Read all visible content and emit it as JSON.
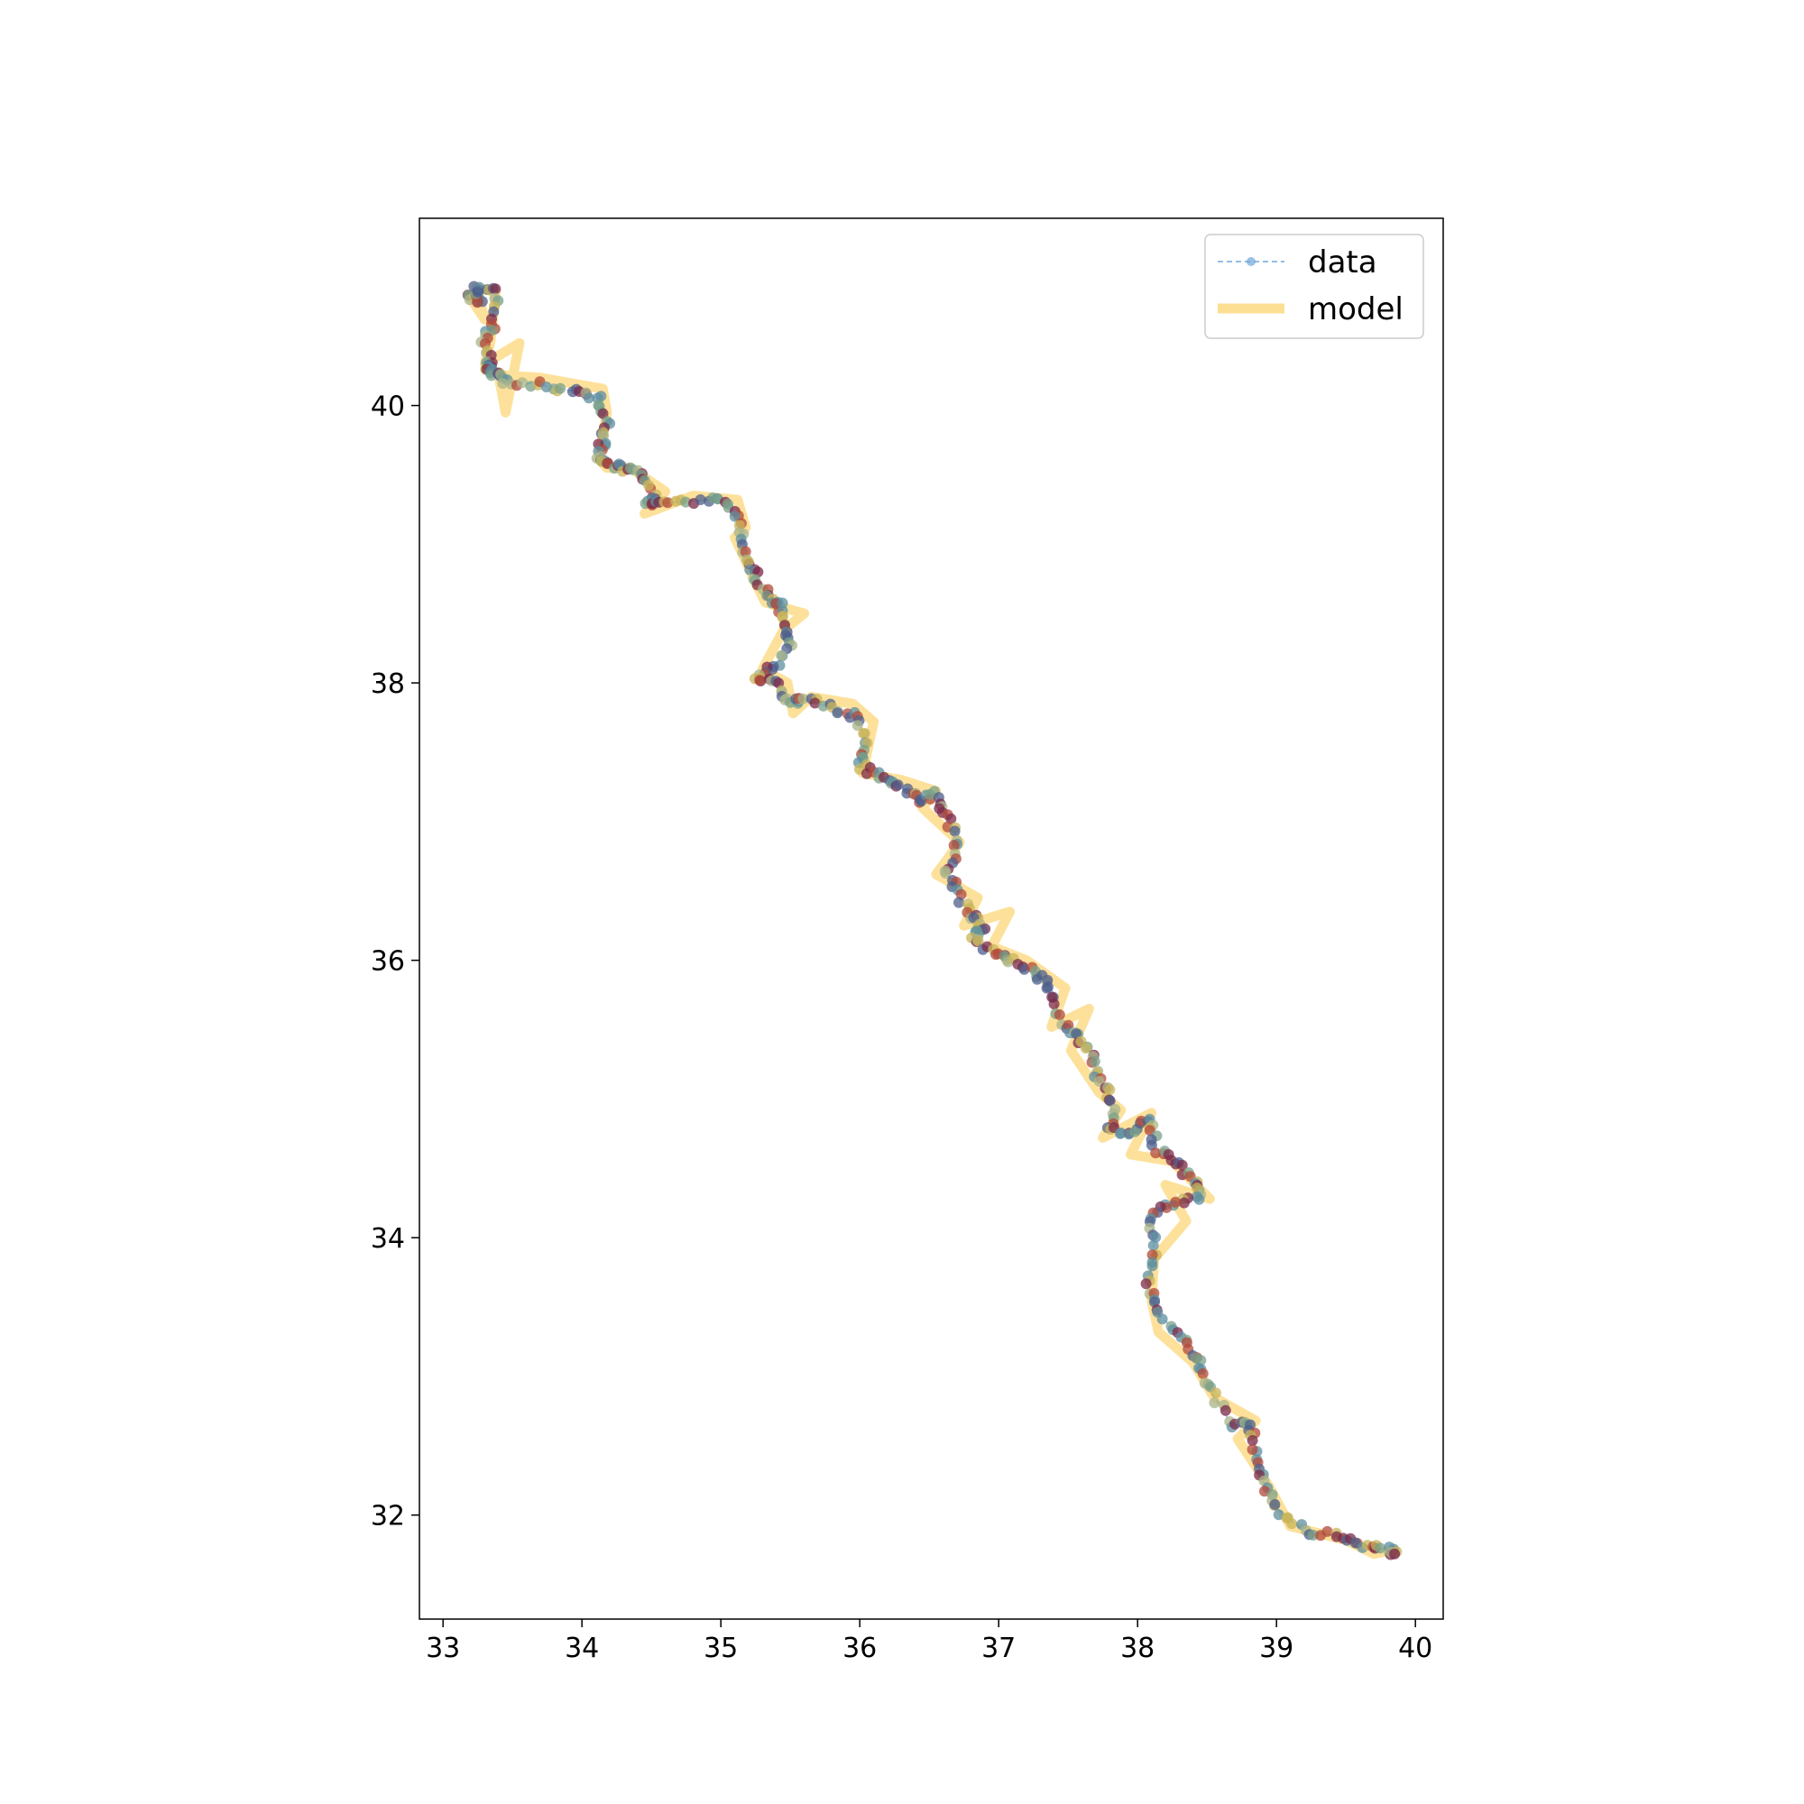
{
  "chart_data": {
    "type": "line",
    "title": "",
    "xlabel": "",
    "ylabel": "",
    "xlim": [
      32.83,
      40.2
    ],
    "ylim": [
      31.25,
      41.35
    ],
    "xticks": [
      33,
      34,
      35,
      36,
      37,
      38,
      39,
      40
    ],
    "yticks": [
      32,
      34,
      36,
      38,
      40
    ],
    "grid": false,
    "legend": {
      "position": "upper-right",
      "entries": [
        {
          "label": "data",
          "style": "dashed line with circle markers",
          "color": "#6fa8dc"
        },
        {
          "label": "model",
          "style": "thick solid line",
          "color": "#fcd779"
        }
      ]
    },
    "point_colors": [
      "#7b2a4a",
      "#4d5f8c",
      "#5e8fa0",
      "#7aa08a",
      "#a9b48a",
      "#c8b45a",
      "#b24a3a"
    ],
    "model_color": "#fcd779",
    "data_color": "#6fa8dc",
    "series": [
      {
        "name": "data",
        "x": [
          33.18,
          33.28,
          33.22,
          33.38,
          33.36,
          33.3,
          33.34,
          33.32,
          33.4,
          33.45,
          33.7,
          33.95,
          34.12,
          34.18,
          34.15,
          34.12,
          34.18,
          34.3,
          34.45,
          34.52,
          34.48,
          34.62,
          34.9,
          35.08,
          35.15,
          35.2,
          35.25,
          35.35,
          35.42,
          35.45,
          35.52,
          35.35,
          35.25,
          35.4,
          35.52,
          35.6,
          35.8,
          35.98,
          36.05,
          36.0,
          36.15,
          36.3,
          36.42,
          36.55,
          36.62,
          36.72,
          36.62,
          36.72,
          36.82,
          36.88,
          36.82,
          36.98,
          37.1,
          37.28,
          37.38,
          37.45,
          37.58,
          37.68,
          37.72,
          37.82,
          37.8,
          37.95,
          38.1,
          38.12,
          38.25,
          38.42,
          38.45,
          38.25,
          38.1,
          38.12,
          38.08,
          38.15,
          38.35,
          38.45,
          38.52,
          38.68,
          38.82,
          38.85,
          38.9,
          39.0,
          39.2,
          39.45,
          39.62,
          39.8,
          39.85
        ],
        "y": [
          40.8,
          40.75,
          40.85,
          40.82,
          40.6,
          40.45,
          40.3,
          40.25,
          40.22,
          40.18,
          40.15,
          40.1,
          40.05,
          39.85,
          39.75,
          39.62,
          39.58,
          39.55,
          39.5,
          39.35,
          39.28,
          39.3,
          39.32,
          39.28,
          39.1,
          38.9,
          38.75,
          38.62,
          38.55,
          38.42,
          38.25,
          38.1,
          38.05,
          37.98,
          37.85,
          37.88,
          37.82,
          37.75,
          37.55,
          37.4,
          37.32,
          37.25,
          37.15,
          37.2,
          37.05,
          36.85,
          36.65,
          36.45,
          36.3,
          36.25,
          36.15,
          36.05,
          36.0,
          35.9,
          35.8,
          35.55,
          35.45,
          35.3,
          35.15,
          35.0,
          34.8,
          34.75,
          34.85,
          34.65,
          34.55,
          34.4,
          34.3,
          34.25,
          34.15,
          33.9,
          33.65,
          33.45,
          33.25,
          33.1,
          32.9,
          32.65,
          32.65,
          32.45,
          32.25,
          32.05,
          31.88,
          31.85,
          31.78,
          31.75,
          31.72
        ]
      },
      {
        "name": "model",
        "x": [
          33.18,
          33.3,
          33.24,
          33.38,
          33.34,
          33.3,
          33.55,
          33.45,
          33.4,
          33.7,
          34.15,
          34.18,
          34.12,
          34.18,
          34.35,
          34.6,
          34.45,
          34.8,
          35.12,
          35.18,
          35.1,
          35.25,
          35.32,
          35.6,
          35.45,
          35.3,
          35.48,
          35.52,
          35.65,
          35.95,
          36.1,
          36.02,
          36.3,
          36.55,
          36.45,
          36.72,
          36.55,
          36.85,
          36.75,
          37.08,
          36.95,
          37.2,
          37.48,
          37.38,
          37.65,
          37.52,
          37.72,
          37.88,
          37.75,
          38.1,
          37.95,
          38.25,
          38.52,
          38.2,
          38.35,
          38.12,
          38.1,
          38.15,
          38.4,
          38.55,
          38.85,
          38.72,
          38.95,
          39.1,
          39.5,
          39.7,
          39.85
        ],
        "y": [
          40.8,
          40.62,
          40.85,
          40.82,
          40.45,
          40.3,
          40.45,
          39.95,
          40.22,
          40.2,
          40.12,
          39.95,
          39.62,
          39.55,
          39.55,
          39.38,
          39.22,
          39.35,
          39.32,
          39.12,
          39.05,
          38.72,
          38.58,
          38.5,
          38.38,
          38.1,
          38.0,
          37.78,
          37.9,
          37.85,
          37.72,
          37.35,
          37.3,
          37.22,
          37.1,
          36.85,
          36.62,
          36.45,
          36.25,
          36.35,
          36.1,
          36.0,
          35.8,
          35.52,
          35.65,
          35.35,
          35.05,
          34.92,
          34.72,
          34.9,
          34.6,
          34.55,
          34.28,
          34.38,
          34.12,
          33.85,
          33.55,
          33.32,
          33.1,
          32.85,
          32.68,
          32.55,
          32.2,
          31.92,
          31.82,
          31.72,
          31.75
        ]
      }
    ]
  }
}
